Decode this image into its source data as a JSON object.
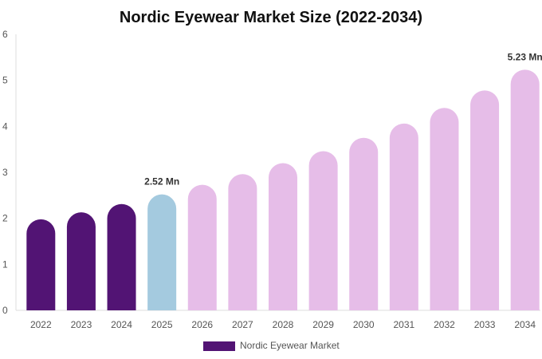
{
  "chart_data": {
    "type": "bar",
    "title": "Nordic Eyewear Market Size (2022-2034)",
    "xlabel": "",
    "ylabel": "",
    "categories": [
      "2022",
      "2023",
      "2024",
      "2025",
      "2026",
      "2027",
      "2028",
      "2029",
      "2030",
      "2031",
      "2032",
      "2033",
      "2034"
    ],
    "series": [
      {
        "name": "Nordic Eyewear Market",
        "values": [
          1.98,
          2.13,
          2.31,
          2.52,
          2.73,
          2.96,
          3.2,
          3.46,
          3.75,
          4.06,
          4.4,
          4.78,
          5.23
        ]
      }
    ],
    "ylim": [
      0,
      6
    ],
    "yticks": [
      "0",
      "1",
      "2",
      "3",
      "4",
      "5",
      "6"
    ],
    "data_labels": [
      {
        "category": "2025",
        "text": "2.52 Mn"
      },
      {
        "category": "2034",
        "text": "5.23 Mn"
      }
    ],
    "bar_colors": {
      "historical": "#521474",
      "base_year": "#A4CADF",
      "forecast": "#E6BDE8"
    },
    "bar_color_by_category": [
      "historical",
      "historical",
      "historical",
      "base_year",
      "forecast",
      "forecast",
      "forecast",
      "forecast",
      "forecast",
      "forecast",
      "forecast",
      "forecast",
      "forecast"
    ],
    "legend": {
      "placement": "bottom-center",
      "label": "Nordic Eyewear Market",
      "color": "#521474"
    },
    "grid": false
  }
}
